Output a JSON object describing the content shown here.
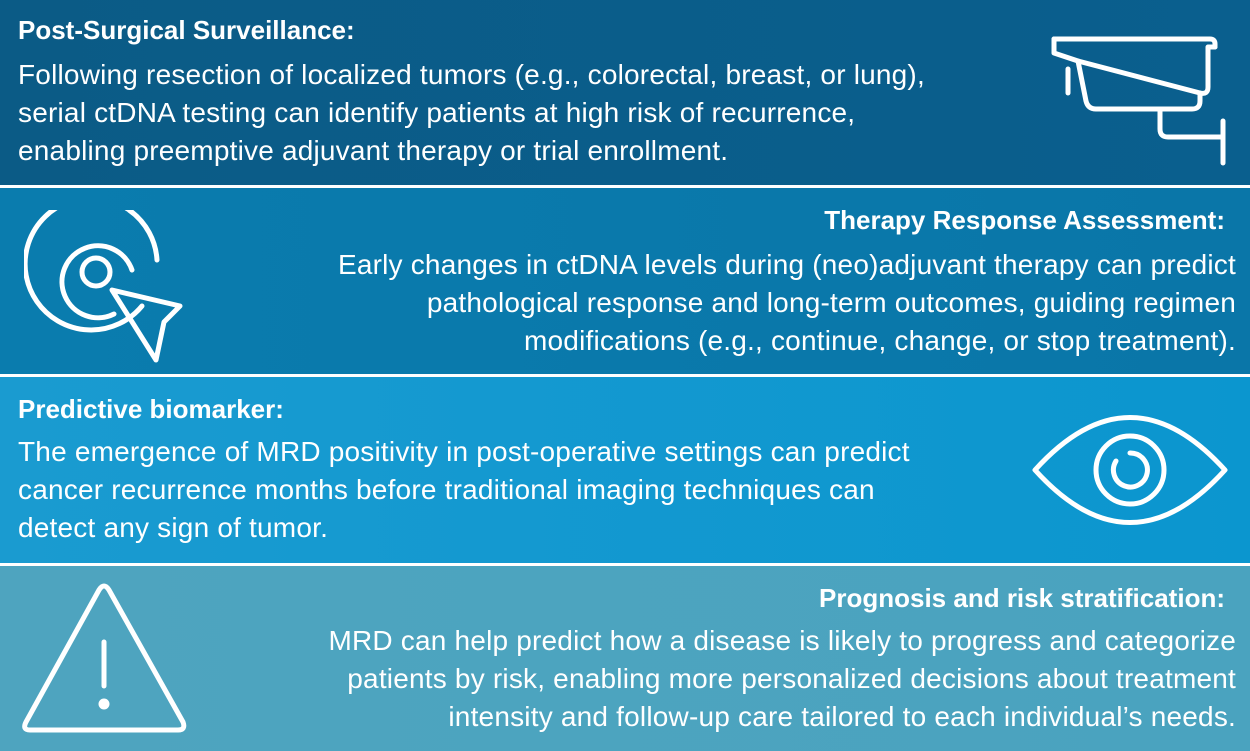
{
  "sections": [
    {
      "title": "Post-Surgical Surveillance:",
      "lines": [
        "Following resection of localized tumors (e.g., colorectal, breast, or lung),",
        "serial ctDNA testing can identify patients at high risk of recurrence,",
        "enabling preemptive adjuvant therapy or trial enrollment."
      ],
      "icon": "security-camera-icon"
    },
    {
      "title": "Therapy Response Assessment:",
      "lines": [
        "Early changes in ctDNA levels during (neo)adjuvant therapy can predict",
        "pathological response and long-term outcomes, guiding regimen",
        "modifications (e.g., continue, change, or stop treatment)."
      ],
      "icon": "target-cursor-icon"
    },
    {
      "title": "Predictive biomarker:",
      "lines": [
        "The emergence of MRD positivity in post-operative settings can predict",
        "cancer recurrence months before traditional imaging techniques can",
        "detect any sign of tumor."
      ],
      "icon": "eye-icon"
    },
    {
      "title": "Prognosis and risk stratification:",
      "lines": [
        "MRD can help predict how a disease is likely to progress and categorize",
        "patients by risk, enabling more personalized decisions about treatment",
        "intensity and follow-up care tailored to each individual’s needs."
      ],
      "icon": "warning-triangle-icon"
    }
  ],
  "colors": {
    "panel_1": "#0b5b86",
    "panel_2": "#0a7cae",
    "panel_3": "#1a9bd0",
    "panel_4": "#4ea4bf",
    "text": "#ffffff"
  }
}
